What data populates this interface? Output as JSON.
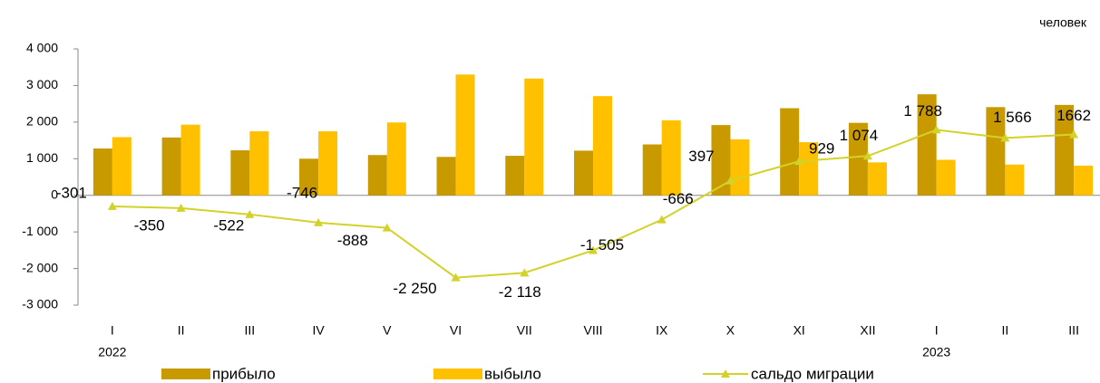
{
  "chart_data": {
    "type": "bar-line",
    "unit_label": "человек",
    "categories": [
      "I",
      "II",
      "III",
      "IV",
      "V",
      "VI",
      "VII",
      "VIII",
      "IX",
      "X",
      "XI",
      "XII",
      "I",
      "II",
      "III"
    ],
    "years": [
      "2022",
      null,
      null,
      null,
      null,
      null,
      null,
      null,
      null,
      null,
      null,
      null,
      "2023",
      null,
      null
    ],
    "ylim": [
      -3000,
      4000
    ],
    "yticks": [
      {
        "value": -3000,
        "label": "-3 000"
      },
      {
        "value": -2000,
        "label": "-2 000"
      },
      {
        "value": -1000,
        "label": "-1 000"
      },
      0,
      {
        "value": 1000,
        "label": "1 000"
      },
      {
        "value": 2000,
        "label": "2 000"
      },
      {
        "value": 3000,
        "label": "3 000"
      },
      {
        "value": 4000,
        "label": "4 000"
      }
    ],
    "series": [
      {
        "name": "прибыло",
        "type": "bar",
        "color": "#C99A00",
        "values": [
          1280,
          1580,
          1230,
          1000,
          1100,
          1050,
          1080,
          1220,
          1390,
          1920,
          2380,
          1980,
          2760,
          2410,
          2470
        ]
      },
      {
        "name": "выбыло",
        "type": "bar",
        "color": "#FFC000",
        "values": [
          1590,
          1930,
          1750,
          1750,
          1990,
          3300,
          3190,
          2710,
          2050,
          1530,
          1450,
          900,
          970,
          840,
          810
        ]
      },
      {
        "name": "сальдо миграции",
        "type": "line",
        "color": "#D2D22A",
        "values": [
          -301,
          -350,
          -522,
          -746,
          -888,
          -2250,
          -2118,
          -1505,
          -666,
          397,
          929,
          1074,
          1788,
          1566,
          1662
        ],
        "value_labels": [
          "-301",
          "-350",
          "-522",
          "-746",
          "-888",
          "-2 250",
          "-2 118",
          "-1 505",
          "-666",
          "397",
          "929",
          "1 074",
          "1 788",
          "1 566",
          "1662"
        ]
      }
    ]
  }
}
